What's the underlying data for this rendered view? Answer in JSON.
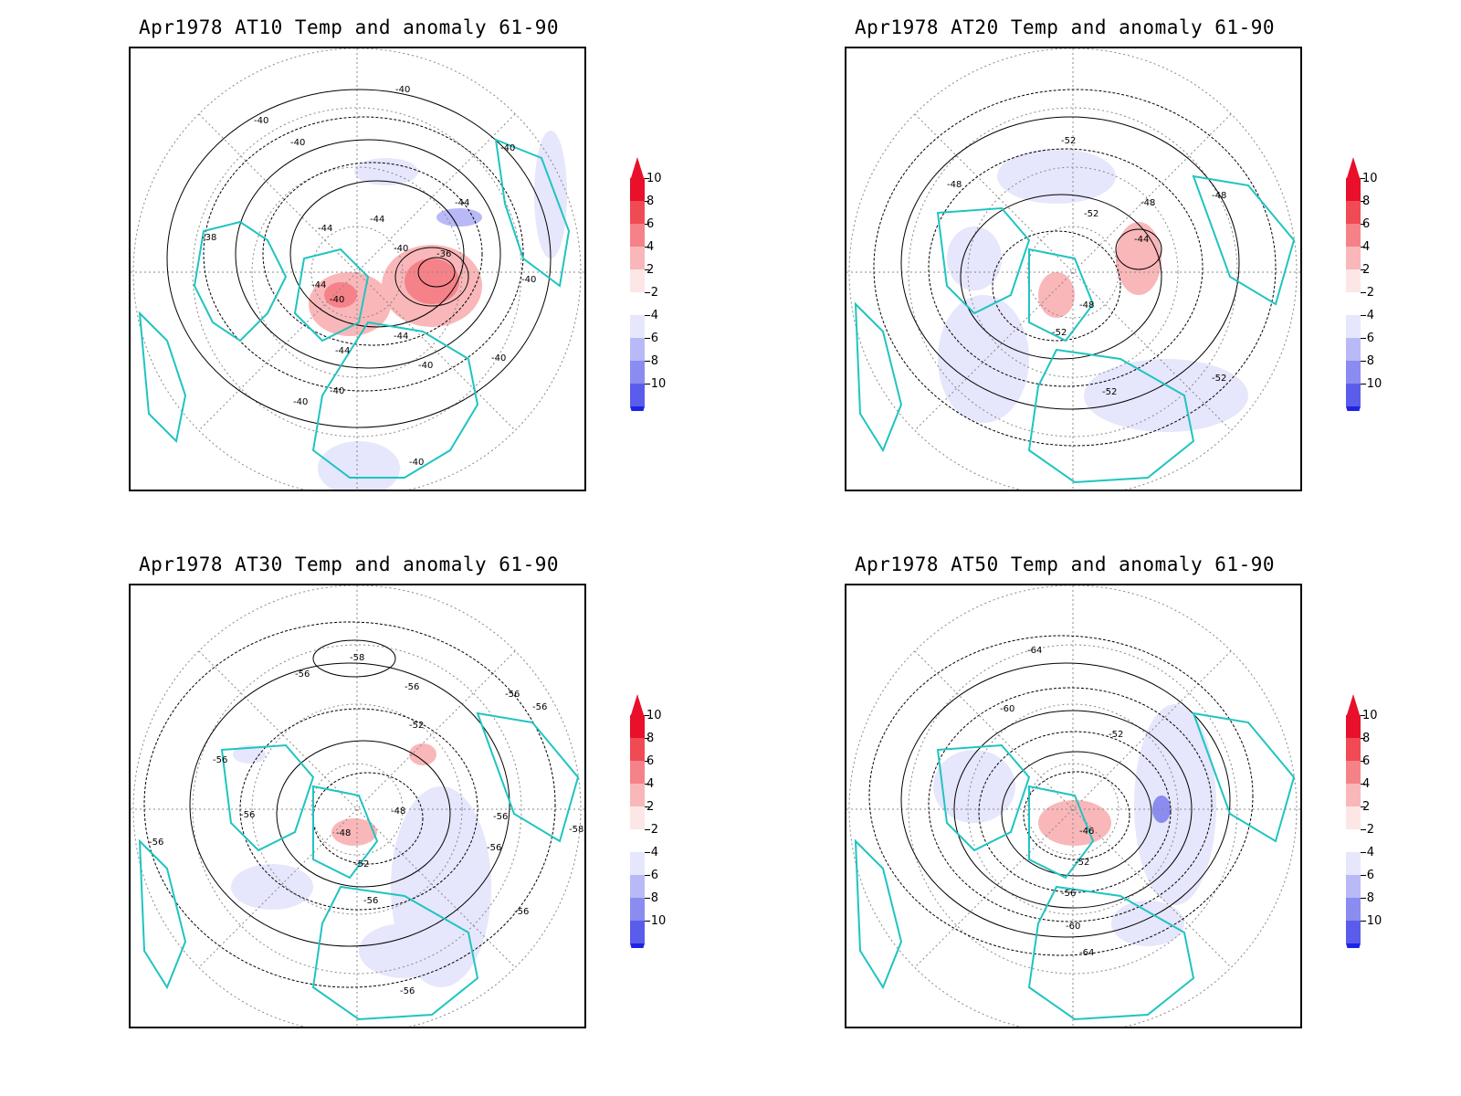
{
  "panels": [
    {
      "id": "p1",
      "title": "Apr1978 AT10 Temp and anomaly 61-90",
      "contour_labels": [
        "-40",
        "-40",
        "-40",
        "-40",
        "-38",
        "-44",
        "-44",
        "-44",
        "-40",
        "-36",
        "-44",
        "-40",
        "-40",
        "-44",
        "-44",
        "-40",
        "-40",
        "-40",
        "-40",
        "-40"
      ]
    },
    {
      "id": "p2",
      "title": "Apr1978 AT20 Temp and anomaly 61-90",
      "contour_labels": [
        "-52",
        "-48",
        "-52",
        "-48",
        "-48",
        "-44",
        "-48",
        "-52",
        "-52",
        "-52"
      ]
    },
    {
      "id": "p3",
      "title": "Apr1978 AT30 Temp and anomaly 61-90",
      "contour_labels": [
        "-58",
        "-56",
        "-56",
        "-56",
        "-56",
        "-52",
        "-56",
        "-56",
        "-48",
        "-48",
        "-56",
        "-58",
        "-52",
        "-56",
        "-56",
        "-56",
        "-56",
        "-56"
      ]
    },
    {
      "id": "p4",
      "title": "Apr1978 AT50 Temp and anomaly 61-90",
      "contour_labels": [
        "-64",
        "-60",
        "-52",
        "-46",
        "-52",
        "-56",
        "-60",
        "-64"
      ]
    }
  ],
  "colorbar": {
    "labels": [
      "10",
      "8",
      "6",
      "4",
      "2",
      "-2",
      "-4",
      "-6",
      "-8",
      "-10"
    ],
    "colors": {
      "c10": "#e8102a",
      "c8": "#f04a55",
      "c6": "#f58288",
      "c4": "#f9b7b9",
      "c2": "#fde6e6",
      "cm2": "#e6e6fc",
      "cm4": "#b8b9f6",
      "cm6": "#8a8cf0",
      "cm8": "#5a5deb",
      "cm10": "#1c23e6"
    }
  },
  "colors": {
    "coastline": "#1fc4c0",
    "contour": "#000000",
    "grid": "#888888",
    "warm_anomaly": "#f58a8e",
    "cold_anomaly": "#c8c9f8"
  }
}
